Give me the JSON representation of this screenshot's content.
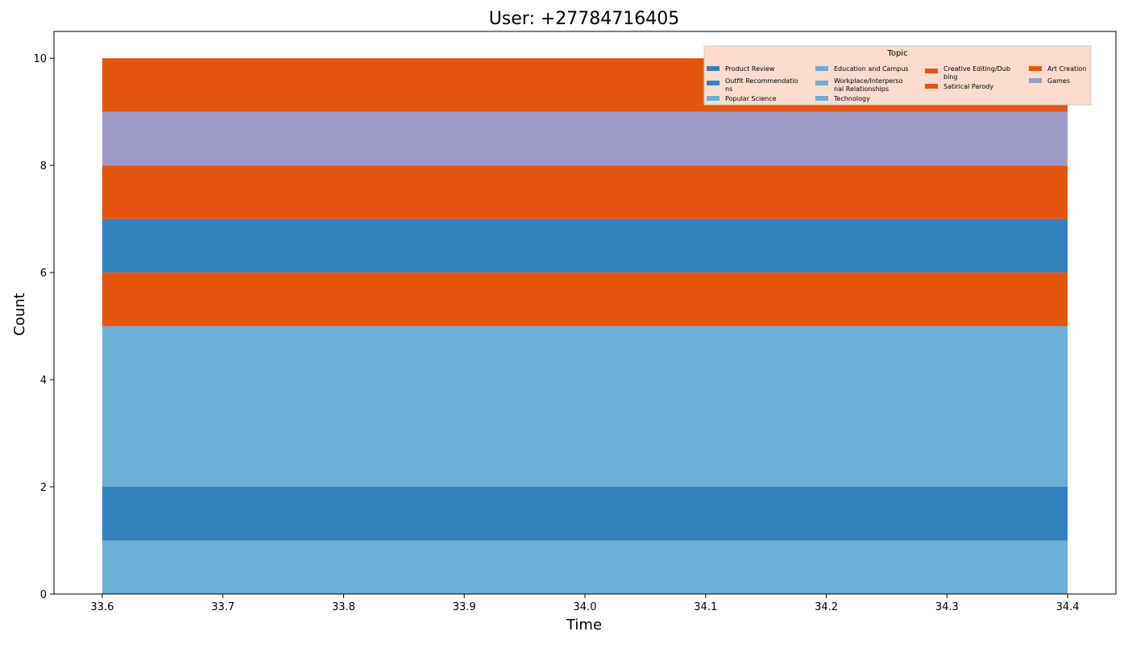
{
  "chart_data": {
    "type": "area",
    "title": "User: +27784716405",
    "xlabel": "Time",
    "ylabel": "Count",
    "xlim": [
      33.56,
      34.44
    ],
    "ylim": [
      0,
      10.5
    ],
    "x": [
      33.6,
      34.4
    ],
    "xticks": [
      33.6,
      33.7,
      33.8,
      33.9,
      34.0,
      34.1,
      34.2,
      34.3,
      34.4
    ],
    "xtick_labels": [
      "33.6",
      "33.7",
      "33.8",
      "33.9",
      "34.0",
      "34.1",
      "34.2",
      "34.3",
      "34.4"
    ],
    "yticks": [
      0,
      2,
      4,
      6,
      8,
      10
    ],
    "ytick_labels": [
      "0",
      "2",
      "4",
      "6",
      "8",
      "10"
    ],
    "grid": false,
    "legend": {
      "title": "Topic",
      "placement": "top-right",
      "columns": 4
    },
    "series": [
      {
        "name": "Popular Science",
        "color": "#6baed6",
        "values": [
          1,
          1
        ]
      },
      {
        "name": "Outfit Recommendations",
        "legend_lines": [
          "Outfit Recommendatio",
          "ns"
        ],
        "color": "#3182bd",
        "values": [
          1,
          1
        ]
      },
      {
        "name": "Education and Campus",
        "color": "#6baed6",
        "values": [
          3,
          3
        ]
      },
      {
        "name": "Satirical Parody",
        "color": "#e6550d",
        "values": [
          1,
          1
        ]
      },
      {
        "name": "Product Review",
        "color": "#3182bd",
        "values": [
          1,
          1
        ]
      },
      {
        "name": "Creative Editing/Dubbing",
        "legend_lines": [
          "Creative Editing/Dub",
          "bing"
        ],
        "color": "#e6550d",
        "values": [
          1,
          1
        ]
      },
      {
        "name": "Games",
        "color": "#9e9ac8",
        "values": [
          1,
          1
        ]
      },
      {
        "name": "Art Creation",
        "color": "#e6550d",
        "values": [
          1,
          1
        ]
      },
      {
        "name": "Workplace/Interpersonal Relationships",
        "legend_lines": [
          "Workplace/Interperso",
          "nal Relationships"
        ],
        "color": "#6baed6",
        "values": [
          0,
          0
        ]
      },
      {
        "name": "Technology",
        "color": "#6baed6",
        "values": [
          0,
          0
        ]
      }
    ],
    "legend_order": [
      "Product Review",
      "Outfit Recommendations",
      "Popular Science",
      "Education and Campus",
      "Workplace/Interpersonal Relationships",
      "Technology",
      "Creative Editing/Dubbing",
      "Satirical Parody",
      "Art Creation",
      "Games"
    ]
  }
}
